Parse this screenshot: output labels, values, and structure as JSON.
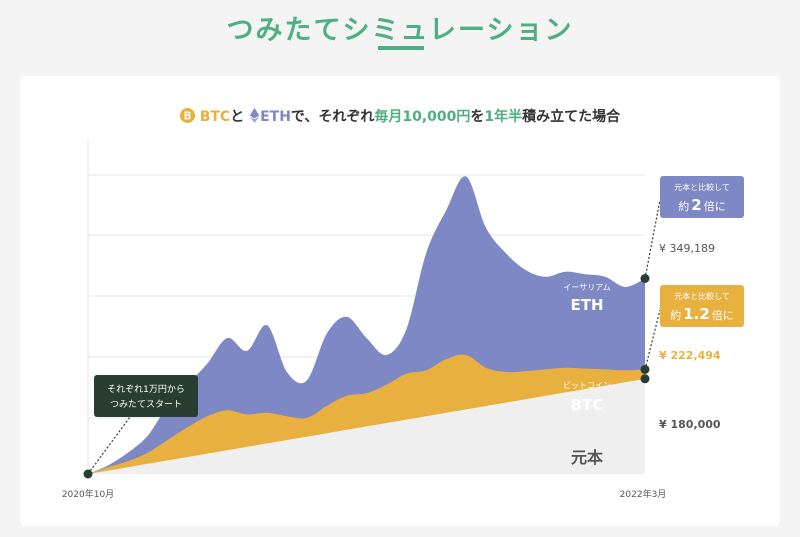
{
  "page": {
    "title": "つみたてシミュレーション"
  },
  "subtitle": {
    "btc": "BTC",
    "to": "と",
    "eth": "ETH",
    "mid": "で、それぞれ",
    "highlight1": "毎月10,000円",
    "wo": "を",
    "highlight2": "1年半",
    "end": "積み立てた場合"
  },
  "colors": {
    "eth": "#7e88c4",
    "btc": "#e8b03e",
    "principal": "#efefef",
    "accent": "#4fae84",
    "dark": "#2a3d31"
  },
  "chart_data": {
    "type": "area",
    "x_start_label": "2020年10月",
    "x_end_label": "2022年3月",
    "start_note_line1": "それぞれ1万円から",
    "start_note_line2": "つみたてスタート",
    "series": [
      {
        "name": "ETH",
        "name_kana": "イーサリアム",
        "end_value_label": "¥ 349,189",
        "callout_line1": "元本と比較して",
        "callout_line2_pre": "約",
        "callout_multiplier": "2",
        "callout_line2_post": "倍に",
        "values": [
          0,
          10,
          25,
          45,
          80,
          105,
          130,
          160,
          145,
          175,
          120,
          110,
          165,
          185,
          160,
          140,
          170,
          260,
          310,
          350,
          290,
          260,
          240,
          232,
          238,
          235,
          232,
          220,
          230
        ]
      },
      {
        "name": "BTC",
        "name_kana": "ビットコイン",
        "end_value_label": "¥ 222,494",
        "callout_line1": "元本と比較して",
        "callout_line2_pre": "約",
        "callout_multiplier": "1.2",
        "callout_line2_post": "倍に",
        "values": [
          0,
          8,
          15,
          25,
          40,
          55,
          68,
          75,
          70,
          72,
          68,
          66,
          80,
          92,
          95,
          105,
          118,
          122,
          135,
          140,
          125,
          120,
          121,
          123,
          125,
          124,
          123,
          122,
          123
        ]
      },
      {
        "name": "元本",
        "end_value_label": "¥ 180,000",
        "values": [
          0,
          4,
          8,
          12,
          16,
          20,
          24,
          28,
          32,
          36,
          40,
          44,
          48,
          52,
          56,
          60,
          64,
          68,
          72,
          76,
          80,
          84,
          88,
          92,
          96,
          100,
          104,
          108,
          112
        ]
      }
    ]
  }
}
